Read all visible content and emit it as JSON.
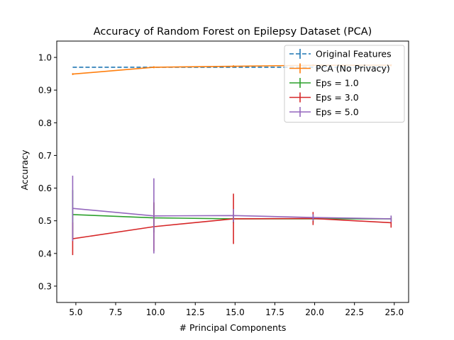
{
  "chart_data": {
    "type": "line",
    "title": "Accuracy of Random Forest on Epilepsy Dataset (PCA)",
    "xlabel": "# Principal Components",
    "ylabel": "Accuracy",
    "xlim": [
      3.8,
      25.9
    ],
    "ylim": [
      0.25,
      1.05
    ],
    "xticks": [
      5.0,
      7.5,
      10.0,
      12.5,
      15.0,
      17.5,
      20.0,
      22.5,
      25.0
    ],
    "xtick_labels": [
      "5.0",
      "7.5",
      "10.0",
      "12.5",
      "15.0",
      "17.5",
      "20.0",
      "22.5",
      "25.0"
    ],
    "yticks": [
      0.3,
      0.4,
      0.5,
      0.6,
      0.7,
      0.8,
      0.9,
      1.0
    ],
    "ytick_labels": [
      "0.3",
      "0.4",
      "0.5",
      "0.6",
      "0.7",
      "0.8",
      "0.9",
      "1.0"
    ],
    "x": [
      4.8,
      9.9,
      14.9,
      19.9,
      24.8
    ],
    "legend_position": "top-right",
    "grid": false,
    "series": [
      {
        "name": "Original Features",
        "color": "#1f77b4",
        "dashed": true,
        "x": [
          4.8,
          24.8
        ],
        "values": [
          0.97,
          0.97
        ],
        "errors": [
          0.0,
          0.0
        ]
      },
      {
        "name": "PCA (No Privacy)",
        "color": "#ff7f0e",
        "dashed": false,
        "values": [
          0.949,
          0.97,
          0.973,
          0.976,
          0.976
        ],
        "errors": [
          0.003,
          0.003,
          0.003,
          0.003,
          0.003
        ]
      },
      {
        "name": "Eps = 1.0",
        "color": "#2ca02c",
        "dashed": false,
        "values": [
          0.519,
          0.509,
          0.506,
          0.506,
          0.506
        ],
        "errors": [
          0.075,
          0.045,
          0.013,
          0.012,
          0.008
        ]
      },
      {
        "name": "Eps = 3.0",
        "color": "#d62728",
        "dashed": false,
        "values": [
          0.445,
          0.482,
          0.506,
          0.507,
          0.494
        ],
        "errors": [
          0.05,
          0.075,
          0.077,
          0.02,
          0.015
        ]
      },
      {
        "name": "Eps = 5.0",
        "color": "#9467bd",
        "dashed": false,
        "values": [
          0.538,
          0.515,
          0.516,
          0.51,
          0.506
        ],
        "errors": [
          0.1,
          0.115,
          0.02,
          0.01,
          0.01
        ]
      }
    ]
  }
}
